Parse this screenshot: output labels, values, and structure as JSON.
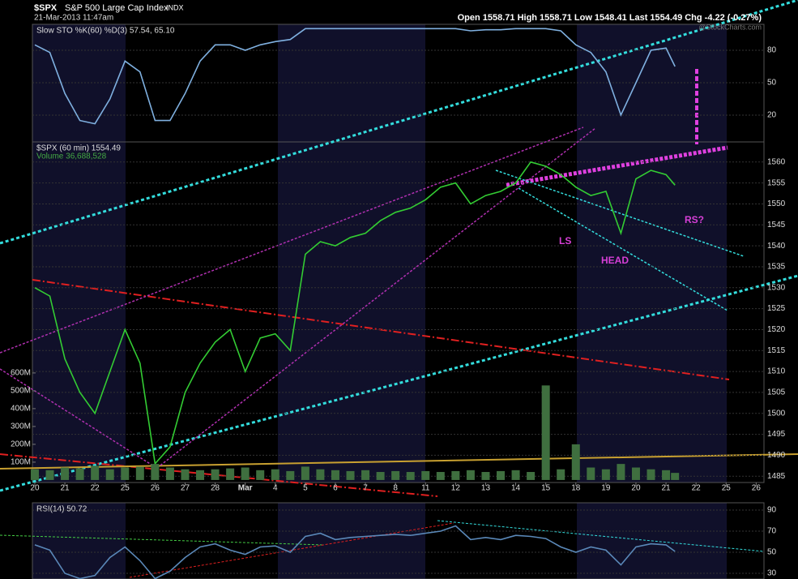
{
  "header": {
    "symbol": "$SPX",
    "name": "S&P 500 Large Cap Index",
    "exchange": "INDX",
    "date": "21-Mar-2013 11:47am",
    "quote": "Open 1558.71  High 1558.71  Low 1548.41  Last 1554.49  Chg -4.22 (-0.27%)",
    "watermark": "@StockCharts.com"
  },
  "chart_data": [
    {
      "type": "line",
      "legend": "Slow STO %K(60) %D(3) 57.54, 65.10",
      "color": "#7fb0e0",
      "x": [
        0,
        0.5,
        1,
        1.5,
        2,
        2.5,
        3,
        3.5,
        4,
        4.5,
        5,
        5.5,
        6,
        6.5,
        7,
        7.5,
        8,
        8.5,
        9,
        9.5,
        10,
        10.5,
        11,
        11.5,
        12,
        12.5,
        13,
        13.5,
        14,
        14.5,
        15,
        15.5,
        16,
        16.5,
        17,
        17.5,
        18,
        18.5,
        19,
        19.5,
        20,
        20.5,
        21,
        21.3
      ],
      "values": [
        85,
        78,
        40,
        15,
        12,
        35,
        70,
        60,
        15,
        15,
        40,
        70,
        85,
        85,
        80,
        85,
        88,
        90,
        100,
        100,
        100,
        100,
        100,
        100,
        100,
        100,
        100,
        100,
        100,
        98,
        99,
        99,
        100,
        100,
        100,
        98,
        85,
        78,
        60,
        20,
        50,
        80,
        82,
        65
      ],
      "xlim": [
        -0.08,
        24.26
      ],
      "ylim": [
        -4.8,
        104
      ],
      "yticks": [
        20,
        50,
        80
      ],
      "grid": true
    },
    {
      "type": "line",
      "legend": "$SPX (60 min) 1554.49",
      "volume_legend": "Volume 36,688,528",
      "color": "#33cc33",
      "x": [
        0,
        0.5,
        1,
        1.5,
        2,
        2.5,
        3,
        3.5,
        4,
        4.5,
        5,
        5.5,
        6,
        6.5,
        7,
        7.5,
        8,
        8.5,
        9,
        9.5,
        10,
        10.5,
        11,
        11.5,
        12,
        12.5,
        13,
        13.5,
        14,
        14.5,
        15,
        15.5,
        16,
        16.5,
        17,
        17.5,
        18,
        18.5,
        19,
        19.5,
        20,
        20.5,
        21,
        21.3
      ],
      "series": [
        {
          "color": "#33cc33",
          "values": [
            1530,
            1528,
            1513,
            1505,
            1500,
            1510,
            1520,
            1512,
            1488,
            1492,
            1505,
            1512,
            1517,
            1520,
            1510,
            1518,
            1519,
            1515,
            1538,
            1541,
            1540,
            1542,
            1543,
            1546,
            1548,
            1549,
            1551,
            1554,
            1555,
            1550,
            1552,
            1553,
            1555,
            1560,
            1559,
            1557,
            1554,
            1552,
            1553,
            1543,
            1556,
            1558,
            1557,
            1554.49
          ]
        },
        {
          "color": "#3f6f3f",
          "axis": "y2",
          "values": [
            60,
            55,
            70,
            65,
            80,
            60,
            70,
            75,
            90,
            70,
            60,
            55,
            60,
            65,
            70,
            55,
            60,
            50,
            75,
            60,
            55,
            50,
            55,
            45,
            50,
            45,
            50,
            45,
            50,
            55,
            45,
            50,
            55,
            45,
            530,
            60,
            200,
            70,
            60,
            90,
            70,
            60,
            55,
            40
          ]
        }
      ],
      "xlim": [
        -0.08,
        24.26
      ],
      "ylim": [
        1483.5,
        1564.8
      ],
      "yticks": [
        1485,
        1490,
        1495,
        1500,
        1505,
        1510,
        1515,
        1520,
        1525,
        1530,
        1535,
        1540,
        1545,
        1550,
        1555,
        1560
      ],
      "y2lim": [
        -14,
        1895
      ],
      "y2ticks": [
        {
          "value": 100,
          "label": "100M"
        },
        {
          "value": 200,
          "label": "200M"
        },
        {
          "value": 300,
          "label": "300M"
        },
        {
          "value": 400,
          "label": "400M"
        },
        {
          "value": 500,
          "label": "500M"
        },
        {
          "value": 600,
          "label": "600M"
        }
      ],
      "xticks": [
        {
          "value": 0,
          "label": "20"
        },
        {
          "value": 1,
          "label": "21"
        },
        {
          "value": 2,
          "label": "22"
        },
        {
          "value": 3,
          "label": "25"
        },
        {
          "value": 4,
          "label": "26"
        },
        {
          "value": 5,
          "label": "27"
        },
        {
          "value": 6,
          "label": "28"
        },
        {
          "value": 7,
          "label": "Mar"
        },
        {
          "value": 8,
          "label": "4"
        },
        {
          "value": 9,
          "label": "5"
        },
        {
          "value": 10,
          "label": "6"
        },
        {
          "value": 11,
          "label": "7"
        },
        {
          "value": 12,
          "label": "8"
        },
        {
          "value": 13,
          "label": "11"
        },
        {
          "value": 14,
          "label": "12"
        },
        {
          "value": 15,
          "label": "13"
        },
        {
          "value": 16,
          "label": "14"
        },
        {
          "value": 17,
          "label": "15"
        },
        {
          "value": 18,
          "label": "18"
        },
        {
          "value": 19,
          "label": "19"
        },
        {
          "value": 20,
          "label": "20"
        },
        {
          "value": 21,
          "label": "21"
        },
        {
          "value": 22,
          "label": "22"
        },
        {
          "value": 23,
          "label": "25"
        },
        {
          "value": 24,
          "label": "26"
        }
      ],
      "annotations": [
        "LS",
        "HEAD",
        "RS?"
      ],
      "grid": true
    },
    {
      "type": "line",
      "legend": "RSI(14) 50.72",
      "color": "#5a88b8",
      "x": [
        0,
        0.5,
        1,
        1.5,
        2,
        2.5,
        3,
        3.5,
        4,
        4.5,
        5,
        5.5,
        6,
        6.5,
        7,
        7.5,
        8,
        8.5,
        9,
        9.5,
        10,
        10.5,
        11,
        11.5,
        12,
        12.5,
        13,
        13.5,
        14,
        14.5,
        15,
        15.5,
        16,
        16.5,
        17,
        17.5,
        18,
        18.5,
        19,
        19.5,
        20,
        20.5,
        21,
        21.3
      ],
      "values": [
        57,
        52,
        30,
        25,
        28,
        45,
        55,
        42,
        25,
        32,
        45,
        55,
        58,
        52,
        48,
        55,
        56,
        50,
        65,
        68,
        62,
        64,
        65,
        66,
        67,
        66,
        68,
        70,
        75,
        62,
        64,
        62,
        66,
        65,
        63,
        55,
        50,
        55,
        52,
        38,
        55,
        58,
        57,
        50.72
      ],
      "xlim": [
        -0.08,
        24.26
      ],
      "ylim": [
        24.6,
        96.9
      ],
      "yticks": [
        30,
        50,
        70,
        90
      ],
      "grid": true
    }
  ]
}
